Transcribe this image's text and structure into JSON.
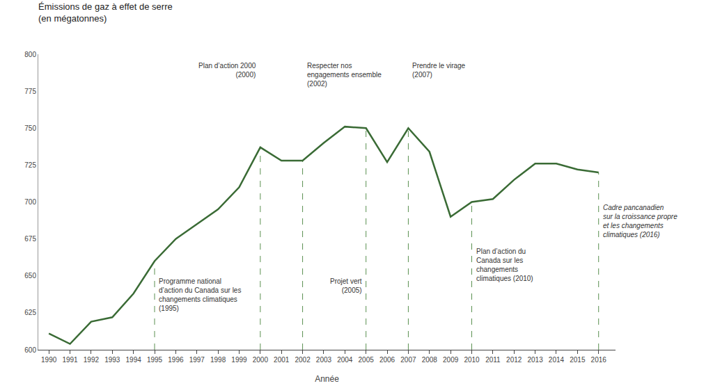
{
  "chart_data": {
    "type": "line",
    "title": "Émissions de gaz à effet de serre\n(en mégatonnes)",
    "xlabel": "Année",
    "x": [
      1990,
      1991,
      1992,
      1993,
      1994,
      1995,
      1996,
      1997,
      1998,
      1999,
      2000,
      2001,
      2002,
      2003,
      2004,
      2005,
      2006,
      2007,
      2008,
      2009,
      2010,
      2011,
      2012,
      2013,
      2014,
      2015,
      2016
    ],
    "values": [
      611,
      604,
      619,
      622,
      638,
      660,
      675,
      685,
      695,
      710,
      737,
      728,
      728,
      740,
      751,
      750,
      727,
      750,
      734,
      690,
      700,
      702,
      715,
      726,
      726,
      722,
      720
    ],
    "color": "#3a6b35",
    "xlim": [
      1989.5,
      2016.8
    ],
    "xticks": [
      1990,
      1991,
      1992,
      1993,
      1994,
      1995,
      1996,
      1997,
      1998,
      1999,
      2000,
      2001,
      2002,
      2003,
      2004,
      2005,
      2006,
      2007,
      2008,
      2009,
      2010,
      2011,
      2012,
      2013,
      2014,
      2015,
      2016
    ],
    "ylim": [
      600,
      800
    ],
    "yticks": [
      600,
      625,
      650,
      675,
      700,
      725,
      750,
      775,
      800
    ],
    "grid": false,
    "annotations": [
      {
        "x": 1995,
        "text": "Programme national\nd’action du Canada sur les\nchangements climatiques\n(1995)",
        "color": "#5a9050",
        "line_style": "dashed"
      },
      {
        "x": 2000,
        "text": "Plan d’action 2000\n(2000)",
        "color": "#5a9050",
        "line_style": "dashed"
      },
      {
        "x": 2002,
        "text": "Respecter nos\nengagements ensemble\n(2002)",
        "color": "#5a9050",
        "line_style": "dashed"
      },
      {
        "x": 2005,
        "text": "Projet vert\n(2005)",
        "color": "#5a9050",
        "line_style": "dashed"
      },
      {
        "x": 2007,
        "text": "Prendre le virage\n(2007)",
        "color": "#5a9050",
        "line_style": "dashed"
      },
      {
        "x": 2010,
        "text": "Plan d’action du\nCanada sur les\nchangements\nclimatiques (2010)",
        "color": "#5a9050",
        "line_style": "dashed"
      },
      {
        "x": 2016,
        "text": "Cadre pancanadien\nsur la croissance propre\net les changements\nclimatiques (2016)",
        "color": "#5a9050",
        "line_style": "dashed"
      }
    ]
  }
}
